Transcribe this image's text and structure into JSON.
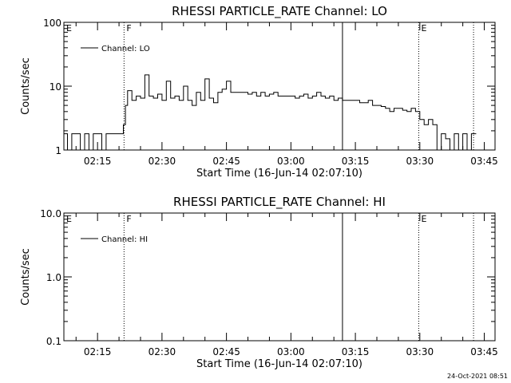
{
  "chart_data": [
    {
      "type": "line",
      "title": "RHESSI PARTICLE_RATE Channel: LO",
      "xlabel": "Start Time (16-Jun-14 02:07:10)",
      "ylabel": "Counts/sec",
      "yscale": "log",
      "ylim": [
        1,
        100
      ],
      "xlim": [
        "02:07:10",
        "03:47:30"
      ],
      "xticks": [
        "02:15",
        "02:30",
        "02:45",
        "03:00",
        "03:15",
        "03:30",
        "03:45"
      ],
      "yticks": [
        "1",
        "10",
        "100"
      ],
      "legend": "Channel: LO",
      "legend_position": "top-left",
      "markers": [
        {
          "time": "02:21:10",
          "label": "F",
          "style": "dotted"
        },
        {
          "time": "03:29:45",
          "label": "E",
          "style": "dotted"
        },
        {
          "time": "03:42:30",
          "label": "",
          "style": "dotted"
        }
      ],
      "edge_marker_label": "E",
      "vline_solid": "03:12:00",
      "series": [
        {
          "name": "Channel: LO",
          "x": [
            "02:07:10",
            "02:08:00",
            "02:09:00",
            "02:10:00",
            "02:11:00",
            "02:12:00",
            "02:13:00",
            "02:14:00",
            "02:15:00",
            "02:16:00",
            "02:17:00",
            "02:18:00",
            "02:19:00",
            "02:20:00",
            "02:21:00",
            "02:21:30",
            "02:22:00",
            "02:23:00",
            "02:24:00",
            "02:25:00",
            "02:26:00",
            "02:27:00",
            "02:28:00",
            "02:29:00",
            "02:30:00",
            "02:31:00",
            "02:32:00",
            "02:33:00",
            "02:34:00",
            "02:35:00",
            "02:36:00",
            "02:37:00",
            "02:38:00",
            "02:39:00",
            "02:40:00",
            "02:41:00",
            "02:42:00",
            "02:43:00",
            "02:44:00",
            "02:45:00",
            "02:46:00",
            "02:47:00",
            "02:48:00",
            "02:49:00",
            "02:50:00",
            "02:51:00",
            "02:52:00",
            "02:53:00",
            "02:54:00",
            "02:55:00",
            "02:56:00",
            "02:57:00",
            "02:58:00",
            "02:59:00",
            "03:00:00",
            "03:01:00",
            "03:02:00",
            "03:03:00",
            "03:04:00",
            "03:05:00",
            "03:06:00",
            "03:07:00",
            "03:08:00",
            "03:09:00",
            "03:10:00",
            "03:11:00",
            "03:12:00",
            "03:13:00",
            "03:14:00",
            "03:15:00",
            "03:16:00",
            "03:17:00",
            "03:18:00",
            "03:19:00",
            "03:20:00",
            "03:21:00",
            "03:22:00",
            "03:23:00",
            "03:24:00",
            "03:25:00",
            "03:26:00",
            "03:27:00",
            "03:28:00",
            "03:29:00",
            "03:30:00",
            "03:31:00",
            "03:32:00",
            "03:33:00",
            "03:34:00",
            "03:35:00",
            "03:36:00",
            "03:37:00",
            "03:38:00",
            "03:39:00",
            "03:40:00",
            "03:41:00",
            "03:42:00"
          ],
          "y": [
            1.8,
            1.0,
            1.8,
            1.8,
            1.0,
            1.8,
            1.0,
            1.8,
            1.8,
            1.0,
            1.8,
            1.8,
            1.8,
            1.8,
            2.5,
            5.0,
            8.5,
            6.0,
            7.0,
            6.5,
            15.0,
            7.0,
            6.5,
            7.5,
            6.0,
            12.0,
            6.5,
            7.0,
            6.0,
            10.0,
            6.0,
            5.0,
            8.0,
            6.0,
            13.0,
            6.5,
            5.5,
            8.0,
            9.0,
            12.0,
            8.0,
            8.0,
            8.0,
            8.0,
            7.5,
            8.0,
            7.0,
            8.0,
            7.0,
            7.5,
            8.0,
            7.0,
            7.0,
            7.0,
            7.0,
            6.5,
            7.0,
            7.5,
            6.5,
            7.0,
            8.0,
            7.0,
            6.5,
            7.0,
            6.0,
            6.5,
            6.0,
            6.0,
            6.0,
            6.0,
            5.5,
            5.5,
            6.0,
            5.0,
            5.0,
            4.8,
            4.5,
            4.0,
            4.5,
            4.5,
            4.2,
            4.0,
            4.5,
            4.0,
            3.0,
            2.5,
            3.0,
            2.5,
            1.0,
            1.8,
            1.5,
            1.0,
            1.8,
            1.0,
            1.8,
            1.0,
            1.8
          ]
        }
      ]
    },
    {
      "type": "line",
      "title": "RHESSI PARTICLE_RATE Channel: HI",
      "xlabel": "Start Time (16-Jun-14 02:07:10)",
      "ylabel": "Counts/sec",
      "yscale": "log",
      "ylim": [
        0.1,
        10
      ],
      "xlim": [
        "02:07:10",
        "03:47:30"
      ],
      "xticks": [
        "02:15",
        "02:30",
        "02:45",
        "03:00",
        "03:15",
        "03:30",
        "03:45"
      ],
      "yticks": [
        "0.1",
        "1.0",
        "10.0"
      ],
      "legend": "Channel: HI",
      "legend_position": "top-left",
      "markers": [
        {
          "time": "02:21:10",
          "label": "F",
          "style": "dotted"
        },
        {
          "time": "03:29:45",
          "label": "E",
          "style": "dotted"
        },
        {
          "time": "03:42:30",
          "label": "",
          "style": "dotted"
        }
      ],
      "edge_marker_label": "E",
      "vline_solid": "03:12:00",
      "series": [
        {
          "name": "Channel: HI",
          "x": [],
          "y": []
        }
      ]
    }
  ],
  "footer": {
    "timestamp": "24-Oct-2021 08:51"
  }
}
